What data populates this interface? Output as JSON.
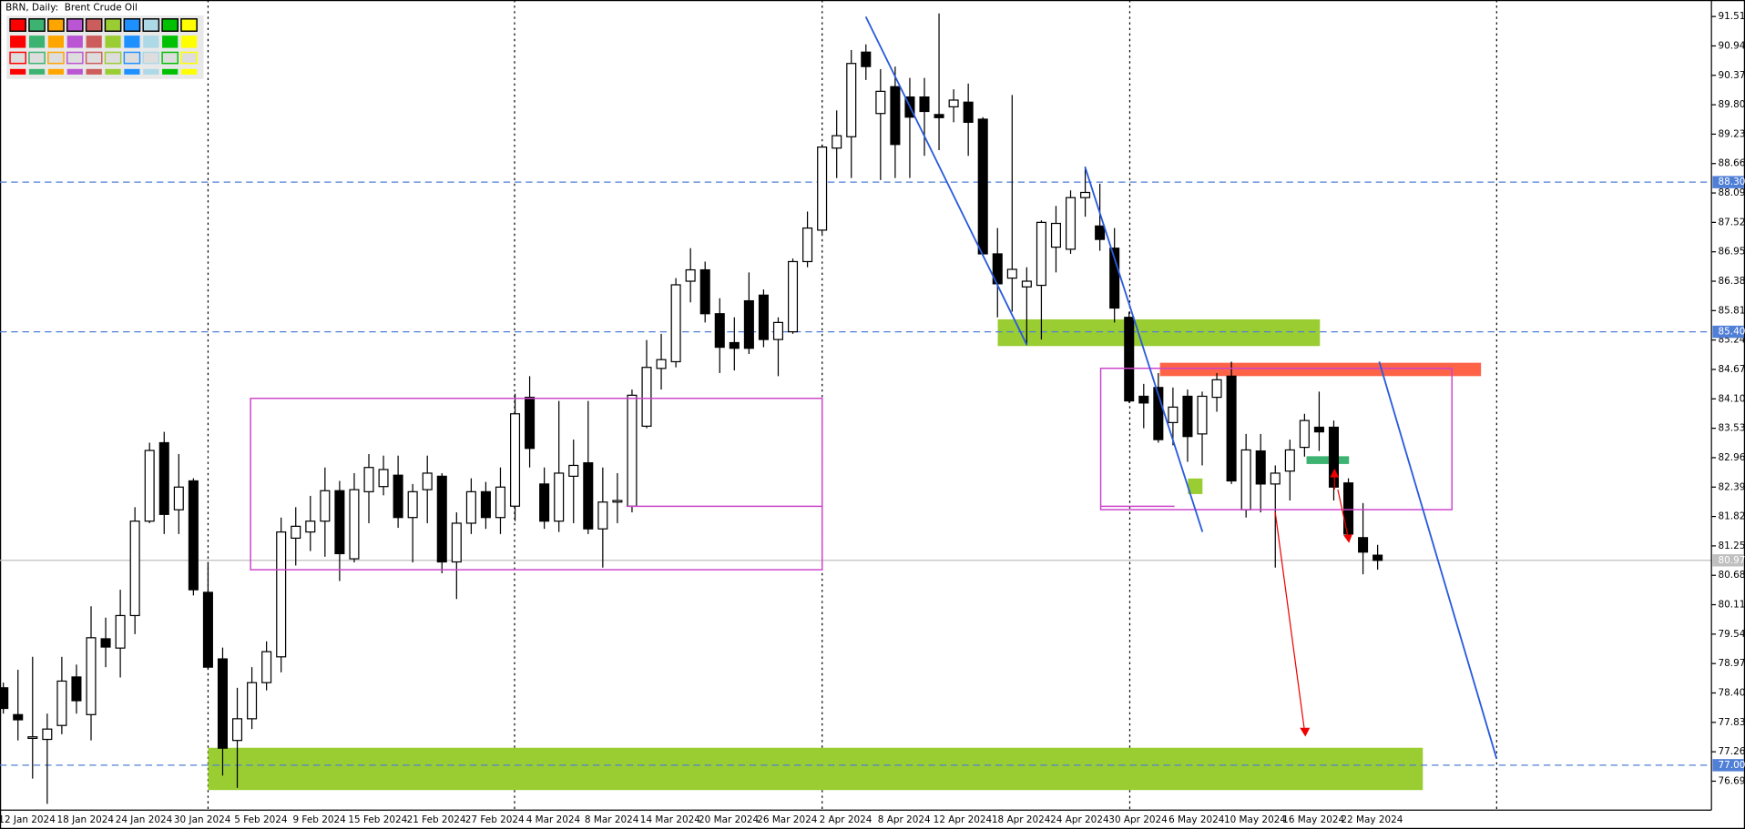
{
  "chart_data": {
    "type": "candlestick",
    "title": "BRN, Daily:  Brent Crude Oil",
    "categories": [
      null,
      "12 Jan 2024",
      null,
      null,
      null,
      "18 Jan 2024",
      null,
      null,
      null,
      "24 Jan 2024",
      null,
      null,
      null,
      "30 Jan 2024",
      null,
      null,
      null,
      "5 Feb 2024",
      null,
      null,
      null,
      "9 Feb 2024",
      null,
      null,
      null,
      "15 Feb 2024",
      null,
      null,
      null,
      "21 Feb 2024",
      null,
      null,
      null,
      "27 Feb 2024",
      null,
      null,
      null,
      "4 Mar 2024",
      null,
      null,
      null,
      "8 Mar 2024",
      null,
      null,
      null,
      "14 Mar 2024",
      null,
      null,
      null,
      "20 Mar 2024",
      null,
      null,
      null,
      "26 Mar 2024",
      null,
      null,
      null,
      "2 Apr 2024",
      null,
      null,
      null,
      "8 Apr 2024",
      null,
      null,
      null,
      "12 Apr 2024",
      null,
      null,
      null,
      "18 Apr 2024",
      null,
      null,
      null,
      "24 Apr 2024",
      null,
      null,
      null,
      "30 Apr 2024",
      null,
      null,
      null,
      "6 May 2024",
      null,
      null,
      null,
      "10 May 2024",
      null,
      null,
      null,
      "16 May 2024",
      null,
      null,
      null,
      "22 May 2024",
      null
    ],
    "open": [
      78.5,
      77.98,
      77.52,
      77.5,
      77.77,
      78.71,
      77.98,
      79.45,
      79.27,
      79.9,
      81.73,
      83.25,
      81.95,
      82.51,
      80.35,
      79.06,
      77.48,
      77.9,
      78.6,
      79.1,
      81.4,
      81.52,
      81.73,
      82.32,
      81.0,
      82.3,
      82.4,
      82.62,
      81.8,
      82.34,
      82.6,
      80.94,
      81.69,
      82.3,
      81.8,
      82.02,
      84.13,
      82.45,
      81.73,
      82.6,
      82.86,
      81.58,
      82.1,
      82.02,
      83.57,
      84.69,
      84.82,
      86.38,
      86.6,
      85.75,
      85.19,
      86.0,
      86.11,
      85.25,
      85.4,
      86.76,
      87.37,
      88.96,
      89.18,
      90.82,
      89.63,
      90.15,
      89.95,
      89.95,
      89.61,
      89.76,
      89.85,
      89.52,
      86.91,
      86.44,
      86.27,
      86.3,
      87.04,
      87.0,
      88.0,
      87.45,
      87.02,
      85.68,
      84.15,
      84.32,
      83.64,
      84.15,
      83.42,
      84.13,
      84.54,
      81.95,
      83.09,
      82.45,
      82.7,
      83.16,
      83.55,
      83.55,
      82.47,
      81.41,
      81.07
    ],
    "high": [
      78.6,
      78.85,
      79.1,
      78.0,
      79.1,
      78.95,
      80.08,
      79.86,
      80.4,
      82.0,
      83.25,
      83.46,
      83.03,
      82.56,
      80.92,
      79.28,
      78.5,
      78.9,
      79.4,
      81.8,
      82.0,
      82.22,
      82.77,
      82.51,
      82.66,
      83.03,
      83.0,
      83.0,
      82.45,
      83.0,
      82.66,
      81.9,
      82.56,
      82.49,
      82.77,
      84.2,
      84.54,
      82.77,
      84.06,
      83.31,
      84.06,
      82.77,
      82.66,
      84.28,
      85.24,
      85.36,
      86.44,
      87.02,
      86.76,
      86.05,
      85.68,
      86.55,
      86.22,
      85.68,
      86.82,
      87.73,
      89.03,
      89.69,
      90.86,
      90.97,
      90.49,
      90.54,
      90.32,
      90.32,
      91.57,
      90.1,
      90.21,
      89.56,
      87.41,
      89.99,
      86.65,
      87.56,
      87.84,
      88.14,
      88.6,
      88.27,
      87.41,
      85.79,
      84.39,
      84.6,
      84.32,
      84.28,
      84.24,
      84.6,
      84.82,
      83.42,
      83.42,
      82.81,
      83.31,
      83.81,
      84.24,
      83.68,
      82.56,
      82.08,
      81.27
    ],
    "low": [
      78.0,
      77.48,
      76.74,
      76.25,
      77.6,
      78.0,
      77.48,
      78.9,
      78.7,
      79.54,
      81.69,
      81.48,
      81.48,
      80.29,
      78.85,
      76.8,
      76.56,
      77.7,
      78.45,
      78.8,
      80.87,
      81.15,
      81.04,
      80.57,
      80.93,
      81.69,
      82.23,
      81.6,
      80.93,
      81.69,
      80.72,
      80.22,
      81.48,
      81.58,
      81.48,
      81.73,
      82.77,
      81.58,
      81.52,
      81.69,
      81.48,
      80.83,
      81.69,
      81.9,
      83.53,
      84.28,
      84.71,
      85.97,
      85.58,
      84.6,
      84.65,
      84.97,
      85.1,
      84.54,
      85.36,
      86.65,
      87.3,
      88.38,
      88.38,
      90.28,
      88.34,
      88.38,
      88.38,
      88.81,
      88.92,
      89.46,
      88.81,
      86.87,
      85.68,
      85.79,
      85.14,
      85.25,
      86.55,
      86.91,
      87.63,
      86.97,
      85.58,
      84.02,
      83.53,
      83.25,
      83.2,
      82.88,
      82.81,
      83.85,
      82.45,
      81.8,
      81.9,
      80.83,
      82.13,
      82.98,
      83.09,
      82.13,
      81.37,
      80.7,
      80.79
    ],
    "close": [
      78.1,
      77.88,
      77.55,
      77.7,
      78.63,
      78.25,
      79.47,
      79.29,
      79.9,
      81.73,
      83.1,
      81.86,
      82.39,
      80.4,
      78.9,
      77.33,
      77.9,
      78.6,
      79.2,
      81.52,
      81.63,
      81.73,
      82.32,
      81.1,
      82.34,
      82.77,
      82.73,
      81.8,
      82.3,
      82.66,
      80.94,
      81.69,
      82.3,
      81.8,
      82.39,
      83.81,
      83.14,
      81.73,
      82.66,
      82.81,
      81.58,
      82.1,
      82.13,
      84.17,
      84.71,
      84.86,
      86.31,
      86.6,
      85.75,
      85.1,
      85.08,
      85.08,
      85.25,
      85.58,
      86.76,
      87.41,
      88.98,
      89.2,
      90.6,
      90.54,
      90.06,
      89.03,
      89.56,
      89.67,
      89.55,
      89.89,
      89.46,
      86.91,
      86.33,
      86.61,
      86.38,
      87.52,
      87.5,
      88.0,
      88.1,
      87.19,
      85.86,
      84.06,
      84.02,
      83.31,
      83.94,
      83.37,
      84.15,
      84.47,
      82.51,
      83.11,
      82.45,
      82.66,
      83.11,
      83.68,
      83.46,
      82.39,
      81.48,
      81.13,
      80.97
    ],
    "up_color": "#ffffff",
    "down_color": "#000000",
    "ylim": [
      76.13,
      91.83
    ],
    "yticks": [
      91.51,
      90.94,
      90.37,
      {
        "value": 89.8,
        "label": "89.80"
      },
      89.23,
      88.66,
      88.09,
      87.52,
      86.95,
      86.38,
      85.81,
      85.24,
      84.67,
      {
        "value": 84.1,
        "label": "84.10"
      },
      83.53,
      82.96,
      82.39,
      81.82,
      81.25,
      80.68,
      80.11,
      79.54,
      78.97,
      {
        "value": 78.4,
        "label": "78.40"
      },
      77.83,
      77.26,
      76.69
    ],
    "levels": [
      {
        "value": 88.3,
        "label": "88.30"
      },
      {
        "value": 85.4,
        "label": "85.40"
      },
      {
        "value": 77,
        "label": "77.00"
      }
    ],
    "level_color": "#4f7fd6",
    "current_price": 80.97,
    "current_color": "#c0c0c0"
  }
}
